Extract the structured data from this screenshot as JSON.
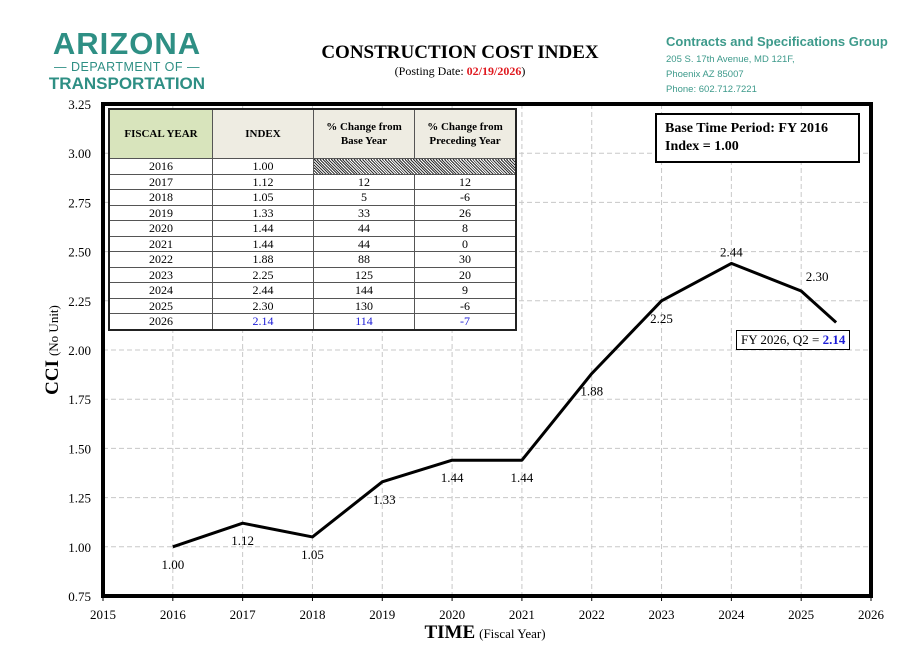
{
  "header": {
    "logo": {
      "line1": "ARIZONA",
      "line2": "— DEPARTMENT OF —",
      "line3": "TRANSPORTATION"
    },
    "title": "CONSTRUCTION COST INDEX",
    "posting_label": "(Posting Date: ",
    "posting_date": "02/19/2026",
    "posting_close": ")",
    "contact": {
      "group": "Contracts and Specifications Group",
      "address1": "205 S. 17th Avenue, MD 121F,",
      "address2": "Phoenix AZ 85007",
      "phone": "Phone: 602.712.7221"
    }
  },
  "table": {
    "headers": [
      "FISCAL YEAR",
      "INDEX",
      "% Change from Base Year",
      "% Change from Preceding Year"
    ],
    "rows": [
      [
        "2016",
        "1.00",
        "",
        ""
      ],
      [
        "2017",
        "1.12",
        "12",
        "12"
      ],
      [
        "2018",
        "1.05",
        "5",
        "-6"
      ],
      [
        "2019",
        "1.33",
        "33",
        "26"
      ],
      [
        "2020",
        "1.44",
        "44",
        "8"
      ],
      [
        "2021",
        "1.44",
        "44",
        "0"
      ],
      [
        "2022",
        "1.88",
        "88",
        "30"
      ],
      [
        "2023",
        "2.25",
        "125",
        "20"
      ],
      [
        "2024",
        "2.44",
        "144",
        "9"
      ],
      [
        "2025",
        "2.30",
        "130",
        "-6"
      ],
      [
        "2026",
        "2.14",
        "114",
        "-7"
      ]
    ]
  },
  "base_box": {
    "line1": "Base Time Period: FY 2016",
    "line2": "Index = 1.00"
  },
  "callout": {
    "text": "FY 2026, Q2 = ",
    "value": "2.14"
  },
  "colors": {
    "line": "#000000",
    "grid": "#c8c8c8",
    "highlight": "#1b1bd6",
    "date": "#e0191f"
  },
  "chart_data": {
    "type": "line",
    "title": "CONSTRUCTION COST INDEX",
    "xlabel_main": "TIME",
    "xlabel_sub": "(Fiscal Year)",
    "ylabel_main": "CCI",
    "ylabel_sub": "(No Unit)",
    "xlim": [
      2015,
      2026
    ],
    "ylim": [
      0.75,
      3.25
    ],
    "xticks": [
      "2015",
      "2016",
      "2017",
      "2018",
      "2019",
      "2020",
      "2021",
      "2022",
      "2023",
      "2024",
      "2025",
      "2026"
    ],
    "yticks": [
      "0.75",
      "1.00",
      "1.25",
      "1.50",
      "1.75",
      "2.00",
      "2.25",
      "2.50",
      "2.75",
      "3.00",
      "3.25"
    ],
    "grid": true,
    "x": [
      2016,
      2017,
      2018,
      2019,
      2020,
      2021,
      2022,
      2023,
      2024,
      2025,
      2025.5
    ],
    "y": [
      1.0,
      1.12,
      1.05,
      1.33,
      1.44,
      1.44,
      1.88,
      2.25,
      2.44,
      2.3,
      2.14
    ],
    "labels": [
      "1.00",
      "1.12",
      "1.05",
      "1.33",
      "1.44",
      "1.44",
      "1.88",
      "2.25",
      "2.44",
      "2.30",
      ""
    ]
  }
}
